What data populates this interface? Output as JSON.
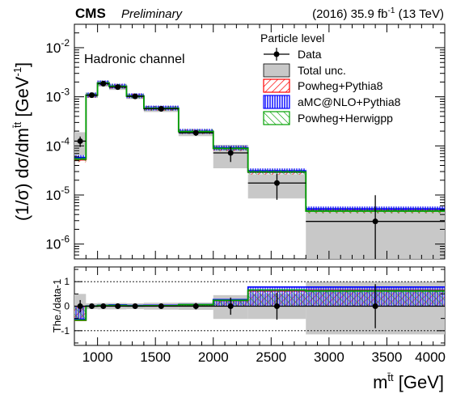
{
  "header": {
    "experiment": "CMS",
    "status": "Preliminary",
    "lumi_prefix": "(2016) 35.9 fb",
    "lumi_exp": "-1",
    "lumi_suffix": " (13 TeV)"
  },
  "annotation": "Hadronic channel",
  "legend": {
    "title": "Particle level",
    "entries": [
      {
        "key": "data",
        "label": "Data"
      },
      {
        "key": "total_unc",
        "label": "Total unc."
      },
      {
        "key": "powheg_pythia8",
        "label": "Powheg+Pythia8"
      },
      {
        "key": "amcatnlo_pythia8",
        "label": "aMC@NLO+Pythia8"
      },
      {
        "key": "powheg_herwigpp",
        "label": "Powheg+Herwigpp"
      }
    ]
  },
  "colors": {
    "data": "#000000",
    "total_unc": "#c8c8c8",
    "powheg_pythia8": "#ff0000",
    "amcatnlo_pythia8": "#0000ff",
    "powheg_herwigpp": "#00a000"
  },
  "chart_data": [
    {
      "type": "line",
      "panel": "main",
      "ylabel_main": "(1/σ) dσ/dm",
      "ylabel_sup": "t̄t",
      "ylabel_unit": " [GeV",
      "ylabel_unit_exp": "-1",
      "ylabel_close": "]",
      "yscale": "log",
      "ylim": [
        5e-07,
        0.03
      ],
      "xlim": [
        800,
        4000
      ],
      "yticks": [
        {
          "base": "10",
          "exp": "-2",
          "value": 0.01
        },
        {
          "base": "10",
          "exp": "-3",
          "value": 0.001
        },
        {
          "base": "10",
          "exp": "-4",
          "value": 0.0001
        },
        {
          "base": "10",
          "exp": "-5",
          "value": 1e-05
        },
        {
          "base": "10",
          "exp": "-6",
          "value": 1e-06
        }
      ],
      "bin_edges": [
        800,
        900,
        1000,
        1100,
        1250,
        1400,
        1700,
        2000,
        2300,
        2800,
        4000
      ],
      "data": {
        "x": [
          850,
          950,
          1050,
          1175,
          1325,
          1550,
          1850,
          2150,
          2550,
          3400
        ],
        "y": [
          0.000125,
          0.00108,
          0.00185,
          0.00158,
          0.00102,
          0.00057,
          0.000185,
          7.2e-05,
          1.75e-05,
          2.9e-06
        ],
        "err_low": [
          3e-05,
          8e-05,
          0.00011,
          0.00011,
          8e-05,
          5e-05,
          2.5e-05,
          2.5e-05,
          9.5e-06,
          2.6e-06
        ],
        "err_high": [
          3e-05,
          8e-05,
          0.00011,
          0.00011,
          8e-05,
          5e-05,
          2.5e-05,
          2.5e-05,
          9.5e-06,
          7e-06
        ]
      },
      "total_unc": {
        "low": [
          6.5e-05,
          0.00095,
          0.0016,
          0.00138,
          0.0009,
          0.00049,
          0.000158,
          3.5e-05,
          8.5e-06,
          5e-07
        ],
        "high": [
          0.00019,
          0.00121,
          0.0021,
          0.00178,
          0.00114,
          0.00065,
          0.000212,
          0.000105,
          2.65e-05,
          5.5e-06
        ]
      },
      "series": [
        {
          "key": "powheg_pythia8",
          "name": "Powheg+Pythia8",
          "values": [
            5.2e-05,
            0.00107,
            0.0019,
            0.00164,
            0.00104,
            0.00058,
            0.000195,
            8.8e-05,
            2.9e-05,
            4.8e-06
          ]
        },
        {
          "key": "amcatnlo_pythia8",
          "name": "aMC@NLO+Pythia8",
          "values": [
            5.8e-05,
            0.00109,
            0.00192,
            0.00165,
            0.00105,
            0.00059,
            0.000198,
            9.1e-05,
            3.1e-05,
            5.2e-06
          ]
        },
        {
          "key": "powheg_herwigpp",
          "name": "Powheg+Herwigpp",
          "values": [
            5.4e-05,
            0.00108,
            0.00191,
            0.00163,
            0.00103,
            0.00058,
            0.000196,
            8.9e-05,
            2.95e-05,
            4.7e-06
          ]
        }
      ]
    },
    {
      "type": "line",
      "panel": "ratio",
      "ylabel": "The./data-1",
      "xlabel_main": "m",
      "xlabel_sup": "t̄t",
      "xlabel_unit": " [GeV]",
      "ylim": [
        -1.6,
        1.6
      ],
      "xlim": [
        800,
        4000
      ],
      "xticks": [
        1000,
        1500,
        2000,
        2500,
        3000,
        3500,
        4000
      ],
      "yticks": [
        -1,
        0,
        1
      ],
      "reference_lines": [
        -1,
        1
      ],
      "bin_edges": [
        800,
        900,
        1000,
        1100,
        1250,
        1400,
        1700,
        2000,
        2300,
        2800,
        4000
      ],
      "data": {
        "x": [
          850,
          950,
          1050,
          1175,
          1325,
          1550,
          1850,
          2150,
          2550,
          3400
        ],
        "y": [
          0,
          0,
          0,
          0,
          0,
          0,
          0,
          0,
          0,
          0
        ],
        "err": [
          0.25,
          0.06,
          0.05,
          0.06,
          0.07,
          0.08,
          0.13,
          0.35,
          0.55,
          0.9
        ]
      },
      "total_unc": {
        "low": [
          -0.5,
          -0.12,
          -0.13,
          -0.13,
          -0.12,
          -0.14,
          -0.15,
          -0.52,
          -0.52,
          -1.15
        ],
        "high": [
          0.5,
          0.12,
          0.13,
          0.13,
          0.12,
          0.14,
          0.15,
          0.45,
          0.5,
          1.0
        ]
      },
      "series": [
        {
          "key": "powheg_pythia8",
          "name": "Powheg+Pythia8",
          "values": [
            -0.58,
            0.0,
            0.03,
            0.04,
            0.02,
            0.02,
            0.05,
            0.23,
            0.62,
            0.65
          ]
        },
        {
          "key": "amcatnlo_pythia8",
          "name": "aMC@NLO+Pythia8",
          "values": [
            -0.53,
            0.01,
            0.04,
            0.05,
            0.03,
            0.04,
            0.07,
            0.27,
            0.78,
            0.78
          ]
        },
        {
          "key": "powheg_herwigpp",
          "name": "Powheg+Herwigpp",
          "values": [
            -0.57,
            0.0,
            0.03,
            0.03,
            0.01,
            0.02,
            0.06,
            0.24,
            0.66,
            0.62
          ]
        }
      ]
    }
  ]
}
